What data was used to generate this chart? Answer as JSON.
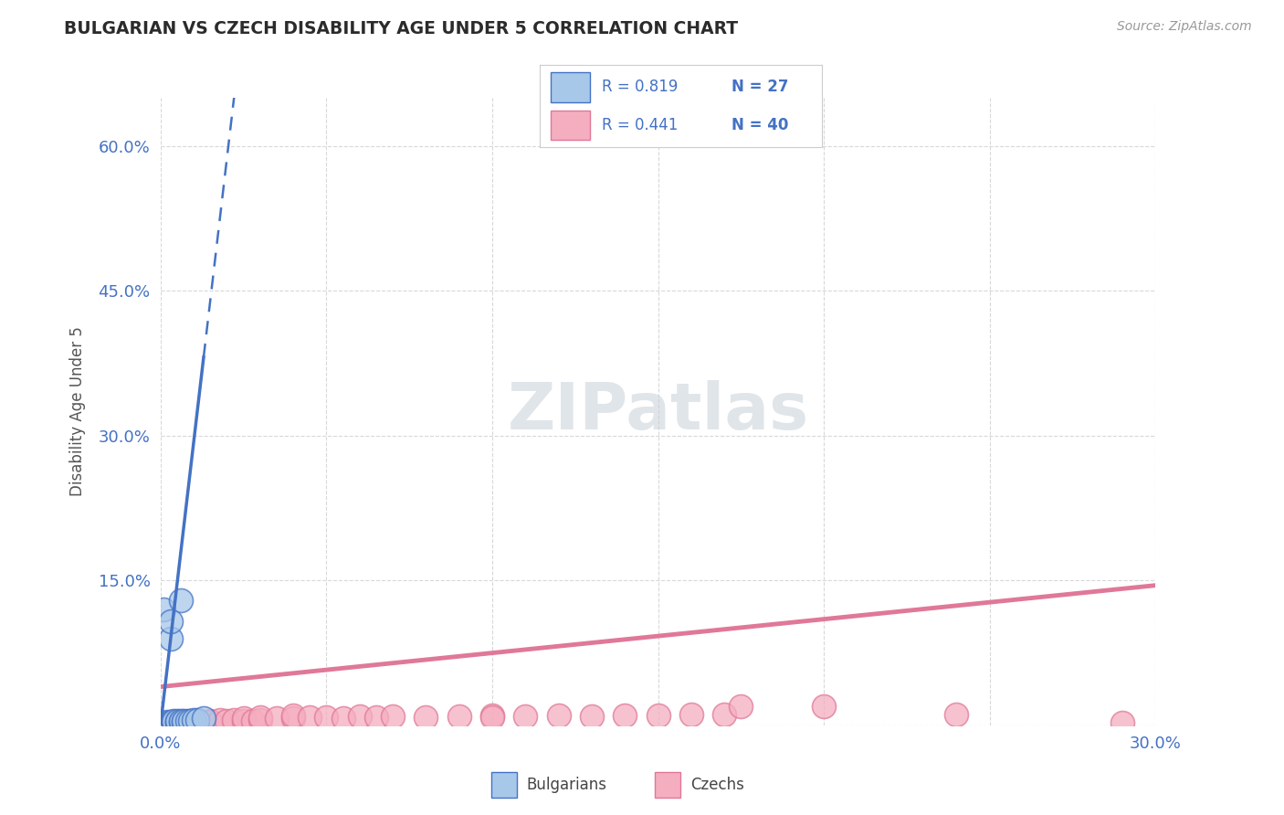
{
  "title": "BULGARIAN VS CZECH DISABILITY AGE UNDER 5 CORRELATION CHART",
  "source": "Source: ZipAtlas.com",
  "ylabel": "Disability Age Under 5",
  "xlim": [
    0.0,
    0.3
  ],
  "ylim": [
    0.0,
    0.65
  ],
  "xtick_positions": [
    0.0,
    0.05,
    0.1,
    0.15,
    0.2,
    0.25,
    0.3
  ],
  "xtick_labels": [
    "0.0%",
    "",
    "",
    "",
    "",
    "",
    "30.0%"
  ],
  "ytick_positions": [
    0.0,
    0.15,
    0.3,
    0.45,
    0.6
  ],
  "ytick_labels": [
    "",
    "15.0%",
    "30.0%",
    "45.0%",
    "60.0%"
  ],
  "bulgarian_R": 0.819,
  "bulgarian_N": 27,
  "czech_R": 0.441,
  "czech_N": 40,
  "bulgarian_color": "#a8c8ea",
  "czech_color": "#f5aec0",
  "bulgarian_line_color": "#4472c4",
  "czech_line_color": "#e07898",
  "watermark_text": "ZIPatlas",
  "bulgarian_points": [
    [
      0.001,
      0.002
    ],
    [
      0.001,
      0.003
    ],
    [
      0.002,
      0.002
    ],
    [
      0.002,
      0.003
    ],
    [
      0.002,
      0.004
    ],
    [
      0.003,
      0.002
    ],
    [
      0.003,
      0.003
    ],
    [
      0.003,
      0.004
    ],
    [
      0.004,
      0.003
    ],
    [
      0.004,
      0.004
    ],
    [
      0.004,
      0.005
    ],
    [
      0.005,
      0.003
    ],
    [
      0.005,
      0.004
    ],
    [
      0.005,
      0.005
    ],
    [
      0.006,
      0.004
    ],
    [
      0.006,
      0.005
    ],
    [
      0.007,
      0.004
    ],
    [
      0.007,
      0.005
    ],
    [
      0.008,
      0.005
    ],
    [
      0.009,
      0.005
    ],
    [
      0.01,
      0.006
    ],
    [
      0.011,
      0.006
    ],
    [
      0.013,
      0.007
    ],
    [
      0.001,
      0.12
    ],
    [
      0.003,
      0.09
    ],
    [
      0.006,
      0.13
    ],
    [
      0.003,
      0.108
    ]
  ],
  "czech_points": [
    [
      0.001,
      0.002
    ],
    [
      0.003,
      0.003
    ],
    [
      0.005,
      0.003
    ],
    [
      0.007,
      0.004
    ],
    [
      0.01,
      0.003
    ],
    [
      0.012,
      0.004
    ],
    [
      0.015,
      0.005
    ],
    [
      0.015,
      0.004
    ],
    [
      0.018,
      0.006
    ],
    [
      0.02,
      0.005
    ],
    [
      0.022,
      0.006
    ],
    [
      0.025,
      0.005
    ],
    [
      0.025,
      0.007
    ],
    [
      0.028,
      0.005
    ],
    [
      0.03,
      0.006
    ],
    [
      0.03,
      0.008
    ],
    [
      0.035,
      0.007
    ],
    [
      0.04,
      0.007
    ],
    [
      0.04,
      0.01
    ],
    [
      0.045,
      0.008
    ],
    [
      0.05,
      0.008
    ],
    [
      0.055,
      0.007
    ],
    [
      0.06,
      0.009
    ],
    [
      0.065,
      0.008
    ],
    [
      0.07,
      0.009
    ],
    [
      0.08,
      0.008
    ],
    [
      0.09,
      0.009
    ],
    [
      0.1,
      0.01
    ],
    [
      0.1,
      0.008
    ],
    [
      0.11,
      0.009
    ],
    [
      0.12,
      0.01
    ],
    [
      0.13,
      0.009
    ],
    [
      0.14,
      0.01
    ],
    [
      0.15,
      0.01
    ],
    [
      0.16,
      0.011
    ],
    [
      0.17,
      0.011
    ],
    [
      0.175,
      0.02
    ],
    [
      0.2,
      0.02
    ],
    [
      0.24,
      0.011
    ],
    [
      0.29,
      0.003
    ]
  ],
  "bg_trend_x0": 0.0,
  "bg_trend_y0": 0.0,
  "bg_trend_x1": 0.015,
  "bg_trend_y1": 0.44,
  "bg_trend_solid_end": 0.013,
  "bg_trend_dash_end": 0.3,
  "cz_trend_x0": 0.0,
  "cz_trend_y0": 0.04,
  "cz_trend_x1": 0.3,
  "cz_trend_y1": 0.145,
  "background_color": "#ffffff",
  "grid_color": "#d8d8d8",
  "title_color": "#2b2b2b",
  "tick_color": "#4472c4",
  "ylabel_color": "#555555"
}
